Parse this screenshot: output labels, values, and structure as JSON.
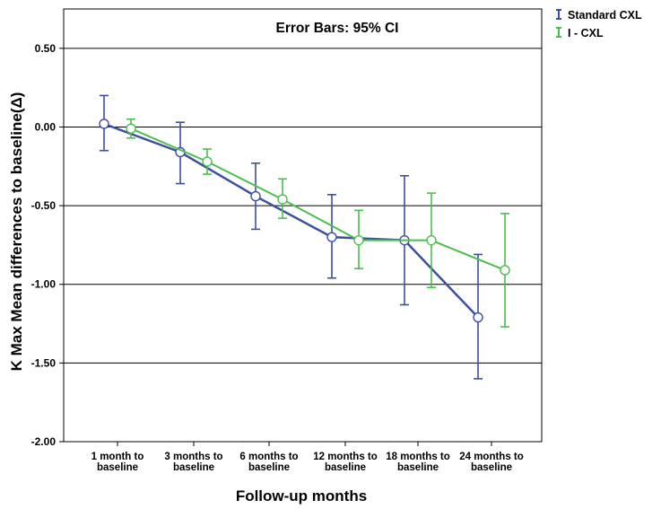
{
  "chart_data": {
    "type": "line",
    "title": "Error Bars: 95% CI",
    "xlabel": "Follow-up months",
    "ylabel": "K Max Mean differences to baseline(Δ)",
    "ylim": [
      -2.0,
      0.75
    ],
    "yticks": [
      0.5,
      0.0,
      -0.5,
      -1.0,
      -1.5,
      -2.0
    ],
    "ytick_labels": [
      "0.50",
      "0.00",
      "-0.50",
      "-1.00",
      "-1.50",
      "-2.00"
    ],
    "grid": "horizontal",
    "legend_position": "top-right (outside plot)",
    "categories": [
      [
        "1 month to",
        "baseline"
      ],
      [
        "3 months to",
        "baseline"
      ],
      [
        "6 months to",
        "baseline"
      ],
      [
        "12 months to",
        "baseline"
      ],
      [
        "18 months to",
        "baseline"
      ],
      [
        "24 months to",
        "baseline"
      ]
    ],
    "series": [
      {
        "name": "Standard CXL",
        "color": "#3c4fa0",
        "values": [
          0.02,
          -0.16,
          -0.44,
          -0.7,
          -0.72,
          -1.21
        ],
        "ci_low": [
          -0.15,
          -0.36,
          -0.65,
          -0.96,
          -1.13,
          -1.6
        ],
        "ci_high": [
          0.2,
          0.03,
          -0.23,
          -0.43,
          -0.31,
          -0.81
        ]
      },
      {
        "name": "I - CXL",
        "color": "#4cbe4c",
        "values": [
          -0.01,
          -0.22,
          -0.46,
          -0.72,
          -0.72,
          -0.91
        ],
        "ci_low": [
          -0.07,
          -0.3,
          -0.58,
          -0.9,
          -1.02,
          -1.27
        ],
        "ci_high": [
          0.05,
          -0.14,
          -0.33,
          -0.53,
          -0.42,
          -0.55
        ]
      }
    ]
  }
}
